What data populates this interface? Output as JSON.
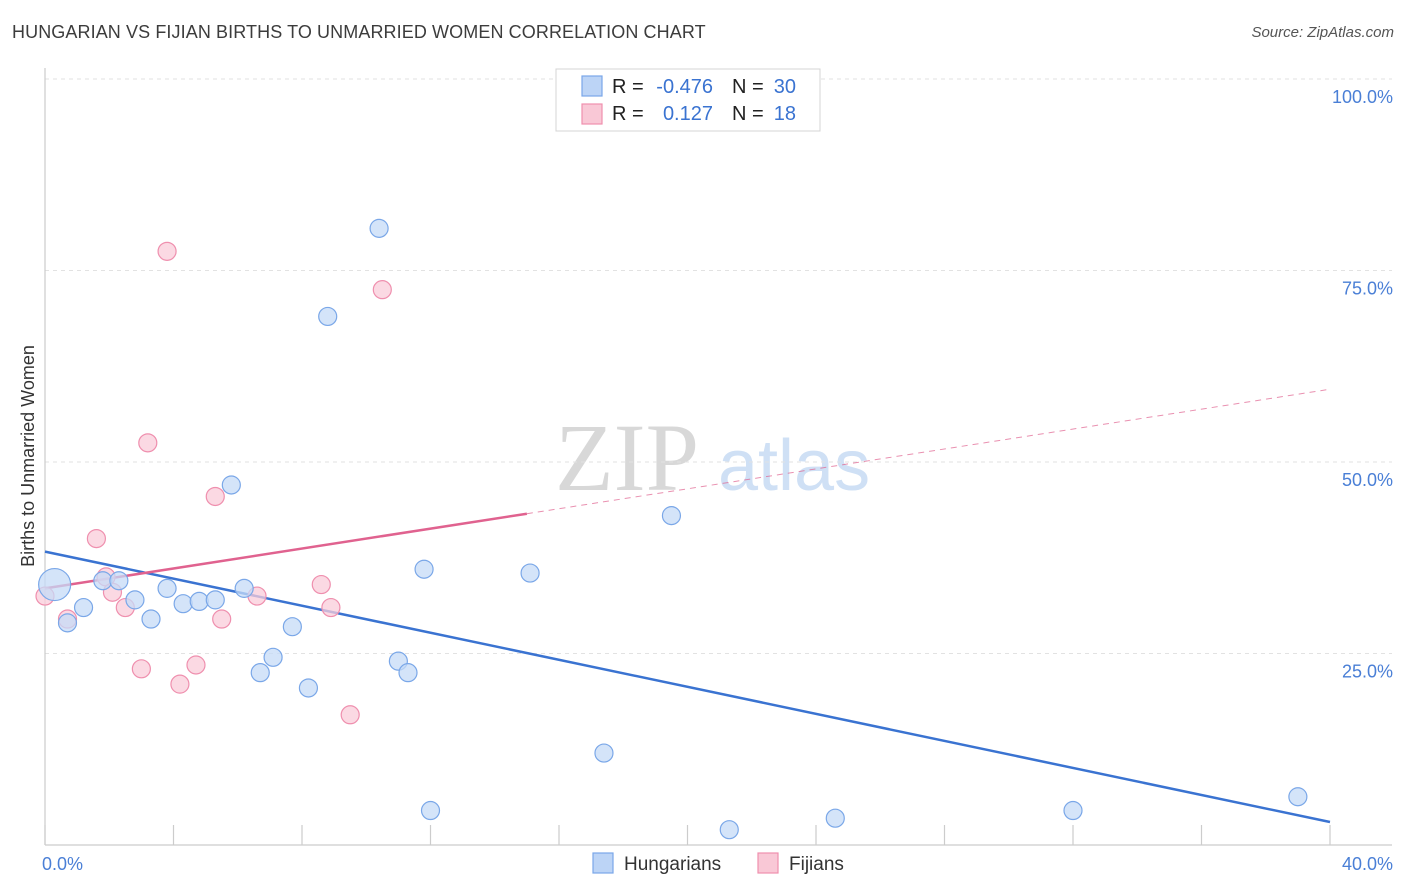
{
  "title": "HUNGARIAN VS FIJIAN BIRTHS TO UNMARRIED WOMEN CORRELATION CHART",
  "source": "Source: ZipAtlas.com",
  "watermark": {
    "zip": "ZIP",
    "atlas": "atlas"
  },
  "chart_data": {
    "type": "scatter",
    "title": "HUNGARIAN VS FIJIAN BIRTHS TO UNMARRIED WOMEN CORRELATION CHART",
    "xlabel": "",
    "ylabel": "Births to Unmarried Women",
    "xlim": [
      0,
      40
    ],
    "ylim": [
      0,
      100
    ],
    "x_tick_labels": [
      {
        "value": 0,
        "label": "0.0%"
      },
      {
        "value": 40,
        "label": "40.0%"
      }
    ],
    "y_tick_labels": [
      {
        "value": 100,
        "label": "100.0%"
      },
      {
        "value": 75,
        "label": "75.0%"
      },
      {
        "value": 50,
        "label": "50.0%"
      },
      {
        "value": 25,
        "label": "25.0%"
      }
    ],
    "legend": {
      "r_label": "R =",
      "n_label": "N =",
      "entries": [
        {
          "name": "Hungarians",
          "r": "-0.476",
          "n": "30",
          "color": "#7aa7e8",
          "fill": "#bcd4f6"
        },
        {
          "name": "Fijians",
          "r": "0.127",
          "n": "18",
          "color": "#ef8fae",
          "fill": "#f9c8d6"
        }
      ]
    },
    "series": [
      {
        "name": "Hungarians",
        "color": "#7aa7e8",
        "fill": "#c6dbf7",
        "trend": {
          "x": [
            0,
            40
          ],
          "y": [
            38.3,
            3.0
          ],
          "color": "#3a73d1"
        },
        "points": [
          {
            "x": 0.3,
            "y": 34.0,
            "big": true
          },
          {
            "x": 0.7,
            "y": 29.0
          },
          {
            "x": 1.2,
            "y": 31.0
          },
          {
            "x": 1.8,
            "y": 34.5
          },
          {
            "x": 2.3,
            "y": 34.5
          },
          {
            "x": 2.8,
            "y": 32.0
          },
          {
            "x": 3.3,
            "y": 29.5
          },
          {
            "x": 3.8,
            "y": 33.5
          },
          {
            "x": 4.3,
            "y": 31.5
          },
          {
            "x": 4.8,
            "y": 31.8
          },
          {
            "x": 5.3,
            "y": 32.0
          },
          {
            "x": 5.8,
            "y": 47.0
          },
          {
            "x": 6.2,
            "y": 33.5
          },
          {
            "x": 6.7,
            "y": 22.5
          },
          {
            "x": 7.1,
            "y": 24.5
          },
          {
            "x": 7.7,
            "y": 28.5
          },
          {
            "x": 8.2,
            "y": 20.5
          },
          {
            "x": 8.8,
            "y": 69.0
          },
          {
            "x": 10.4,
            "y": 80.5
          },
          {
            "x": 11.0,
            "y": 24.0
          },
          {
            "x": 11.3,
            "y": 22.5
          },
          {
            "x": 11.8,
            "y": 36.0
          },
          {
            "x": 12.0,
            "y": 4.5
          },
          {
            "x": 15.1,
            "y": 35.5
          },
          {
            "x": 17.4,
            "y": 12.0
          },
          {
            "x": 19.5,
            "y": 43.0
          },
          {
            "x": 21.3,
            "y": 2.0
          },
          {
            "x": 24.6,
            "y": 3.5
          },
          {
            "x": 32.0,
            "y": 4.5
          },
          {
            "x": 39.0,
            "y": 6.3
          }
        ]
      },
      {
        "name": "Fijians",
        "color": "#ef8fae",
        "fill": "#f9ccd9",
        "trend": {
          "x": [
            0,
            40
          ],
          "y": [
            33.5,
            59.5
          ],
          "solid_until": 15.0,
          "color": "#e0628f"
        },
        "points": [
          {
            "x": 0.0,
            "y": 32.5
          },
          {
            "x": 0.7,
            "y": 29.5
          },
          {
            "x": 1.6,
            "y": 40.0
          },
          {
            "x": 1.9,
            "y": 35.0
          },
          {
            "x": 2.1,
            "y": 33.0
          },
          {
            "x": 2.5,
            "y": 31.0
          },
          {
            "x": 3.0,
            "y": 23.0
          },
          {
            "x": 3.2,
            "y": 52.5
          },
          {
            "x": 3.8,
            "y": 77.5
          },
          {
            "x": 4.2,
            "y": 21.0
          },
          {
            "x": 4.7,
            "y": 23.5
          },
          {
            "x": 5.3,
            "y": 45.5
          },
          {
            "x": 5.5,
            "y": 29.5
          },
          {
            "x": 6.6,
            "y": 32.5
          },
          {
            "x": 8.6,
            "y": 34.0
          },
          {
            "x": 8.9,
            "y": 31.0
          },
          {
            "x": 9.5,
            "y": 17.0
          },
          {
            "x": 10.5,
            "y": 72.5
          }
        ]
      }
    ]
  }
}
